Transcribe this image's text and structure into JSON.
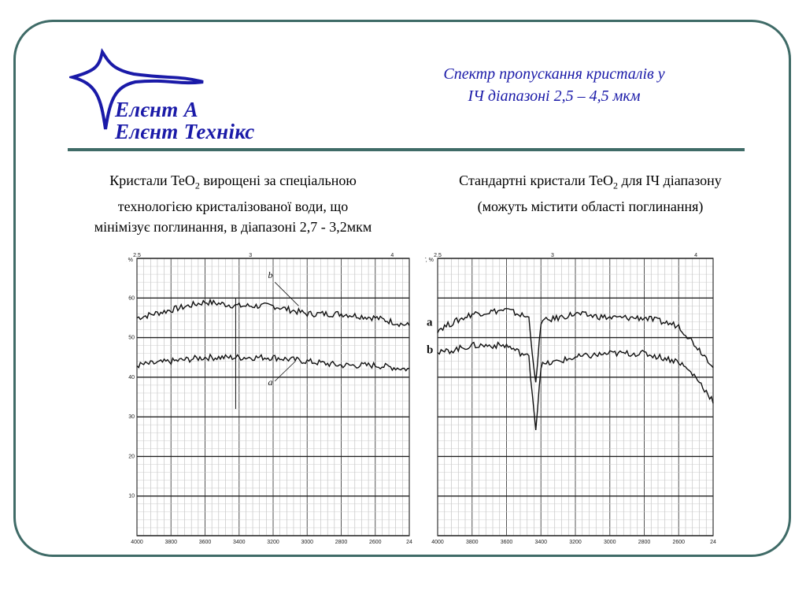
{
  "brand": {
    "line1": "Елєнт А",
    "line2": "Елєнт Технікс",
    "colors": {
      "text": "#1a1aa8",
      "frame": "#3f6b67"
    },
    "logo_icon": "four-point-star"
  },
  "title": {
    "line1": "Спектр пропускання кристалів у",
    "line2": "ІЧ діапазоні 2,5 – 4,5 мкм"
  },
  "left_caption": {
    "line1_a": "Кристали TeO",
    "line1_sub": "2",
    "line1_b": " вирощені за спеціальною",
    "line2": "технологією кристалізованої води, що",
    "line3": "мінімізує поглинання, в діапазоні 2,7 - 3,2мкм"
  },
  "right_caption": {
    "line1_a": "Стандартні кристали TeO",
    "line1_sub": "2",
    "line1_b": " для ІЧ діапазону",
    "line2": "(можуть містити області поглинання)"
  },
  "chart_data": [
    {
      "type": "line",
      "x_ticks": [
        "4000",
        "3800",
        "3600",
        "3400",
        "3200",
        "3000",
        "2800",
        "2600",
        "24"
      ],
      "top_ticks": [
        "2.5",
        "3",
        "4"
      ],
      "y_label": "T, %",
      "y_ticks": [
        "60",
        "50",
        "40",
        "30",
        "20",
        "10"
      ],
      "ylim": [
        0,
        70
      ],
      "series": [
        {
          "name": "b",
          "x": [
            4000,
            3800,
            3600,
            3400,
            3200,
            3000,
            2800,
            2600,
            2400
          ],
          "values": [
            55,
            57,
            59,
            58,
            58,
            56,
            56,
            55,
            53
          ]
        },
        {
          "name": "a",
          "x": [
            4000,
            3800,
            3600,
            3400,
            3200,
            3000,
            2800,
            2600,
            2400
          ],
          "values": [
            43,
            44,
            45,
            45,
            45,
            44,
            43,
            43,
            42
          ]
        }
      ]
    },
    {
      "type": "line",
      "x_ticks": [
        "4000",
        "3800",
        "3600",
        "3400",
        "3200",
        "3000",
        "2800",
        "2600",
        "24"
      ],
      "top_ticks": [
        "2.5",
        "3",
        "4"
      ],
      "y_label": "T, %",
      "ylim": [
        0,
        70
      ],
      "series": [
        {
          "name": "a",
          "x": [
            4000,
            3800,
            3600,
            3470,
            3430,
            3400,
            3200,
            3000,
            2800,
            2600,
            2500,
            2400
          ],
          "values": [
            52,
            56,
            57,
            55,
            38,
            54,
            56,
            55,
            55,
            53,
            48,
            43
          ]
        },
        {
          "name": "b",
          "x": [
            4000,
            3800,
            3600,
            3470,
            3430,
            3400,
            3200,
            3000,
            2800,
            2600,
            2500,
            2400
          ],
          "values": [
            46,
            48,
            48,
            45,
            27,
            43,
            45,
            46,
            46,
            44,
            40,
            34
          ]
        }
      ]
    }
  ]
}
